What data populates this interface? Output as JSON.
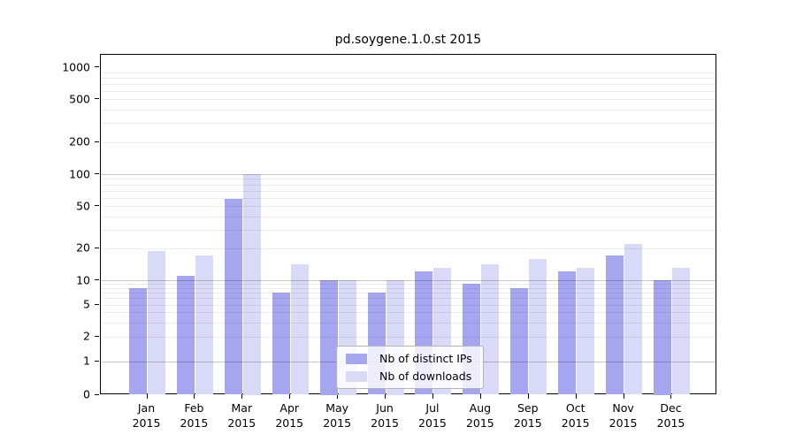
{
  "title": "pd.soygene.1.0.st 2015",
  "legend": {
    "items": [
      {
        "label": "Nb of distinct IPs",
        "color": "#a6a6f0"
      },
      {
        "label": "Nb of downloads",
        "color": "#d9d9f8"
      }
    ]
  },
  "chart_data": {
    "type": "bar",
    "title": "pd.soygene.1.0.st 2015",
    "categories": [
      "Jan 2015",
      "Feb 2015",
      "Mar 2015",
      "Apr 2015",
      "May 2015",
      "Jun 2015",
      "Jul 2015",
      "Aug 2015",
      "Sep 2015",
      "Oct 2015",
      "Nov 2015",
      "Dec 2015"
    ],
    "x_tick_months": [
      "Jan",
      "Feb",
      "Mar",
      "Apr",
      "May",
      "Jun",
      "Jul",
      "Aug",
      "Sep",
      "Oct",
      "Nov",
      "Dec"
    ],
    "x_tick_year": "2015",
    "series": [
      {
        "name": "Nb of distinct IPs",
        "color": "#a6a6f0",
        "values": [
          8,
          11,
          58,
          7,
          10,
          7,
          12,
          9,
          8,
          12,
          17,
          10
        ]
      },
      {
        "name": "Nb of downloads",
        "color": "#d9d9f8",
        "values": [
          19,
          17,
          100,
          14,
          10,
          10,
          13,
          14,
          16,
          13,
          22,
          13
        ]
      }
    ],
    "xlabel": "",
    "ylabel": "",
    "yscale": "symlog",
    "ylim": [
      0,
      1300
    ],
    "y_ticks": [
      0,
      1,
      2,
      5,
      10,
      20,
      50,
      100,
      200,
      500,
      1000
    ],
    "grid": {
      "on": true,
      "major_lines": [
        1,
        10,
        100
      ],
      "minor_lines": [
        2,
        3,
        4,
        5,
        6,
        7,
        8,
        9,
        20,
        30,
        40,
        50,
        60,
        70,
        80,
        90,
        200,
        300,
        400,
        500,
        600,
        700,
        800,
        900
      ]
    },
    "legend_position": "lower-center-right"
  },
  "colors": {
    "distinct_ips": "#a6a6f0",
    "downloads": "#d9d9f8",
    "axis": "#000000",
    "background": "#ffffff"
  }
}
